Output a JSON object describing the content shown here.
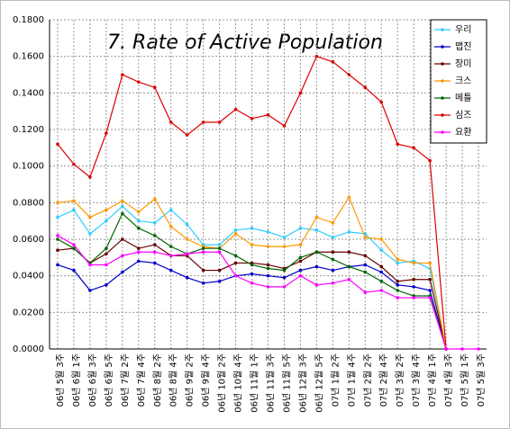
{
  "chart_data": {
    "type": "line",
    "title": "7. Rate of Active Population",
    "categories": [
      "06년 5월 3주",
      "06년 6월 1주",
      "06년 6월 3주",
      "06년 6월 5주",
      "06년 7월 2주",
      "06년 7월 4주",
      "06년 8월 2주",
      "06년 8월 4주",
      "06년 9월 2주",
      "06년 9월 4주",
      "06년 10월 2주",
      "06년 10월 4주",
      "06년 11월 1주",
      "06년 11월 3주",
      "06년 11월 5주",
      "06년 12월 3주",
      "06년 12월 5주",
      "07년 1월 2주",
      "07년 1월 4주",
      "07년 2월 2주",
      "07년 2월 4주",
      "07년 3월 2주",
      "07년 3월 4주",
      "07년 4월 1주",
      "07년 4월 3주",
      "07년 5월 1주",
      "07년 5월 3주"
    ],
    "series": [
      {
        "name": "우리",
        "color": "#33ccff",
        "values": [
          0.072,
          0.076,
          0.063,
          0.07,
          0.078,
          0.07,
          0.069,
          0.076,
          0.068,
          0.057,
          0.057,
          0.065,
          0.066,
          0.064,
          0.061,
          0.066,
          0.065,
          0.061,
          0.064,
          0.063,
          0.054,
          0.047,
          0.048,
          0.044,
          0,
          null,
          null
        ]
      },
      {
        "name": "맵진",
        "color": "#0000cc",
        "values": [
          0.046,
          0.043,
          0.032,
          0.035,
          0.042,
          0.048,
          0.047,
          0.043,
          0.039,
          0.036,
          0.037,
          0.04,
          0.041,
          0.04,
          0.039,
          0.043,
          0.045,
          0.043,
          0.045,
          0.046,
          0.042,
          0.035,
          0.034,
          0.032,
          0,
          null,
          null
        ]
      },
      {
        "name": "장미",
        "color": "#660000",
        "values": [
          0.054,
          0.055,
          0.047,
          0.052,
          0.06,
          0.055,
          0.057,
          0.051,
          0.051,
          0.043,
          0.043,
          0.047,
          0.047,
          0.046,
          0.044,
          0.048,
          0.053,
          0.053,
          0.053,
          0.051,
          0.045,
          0.037,
          0.038,
          0.038,
          0,
          null,
          null
        ]
      },
      {
        "name": "크스",
        "color": "#ff9900",
        "values": [
          0.08,
          0.081,
          0.072,
          0.076,
          0.081,
          0.075,
          0.082,
          0.067,
          0.06,
          0.056,
          0.055,
          0.063,
          0.057,
          0.056,
          0.056,
          0.057,
          0.072,
          0.069,
          0.083,
          0.061,
          0.06,
          0.049,
          0.047,
          0.047,
          0,
          null,
          null
        ]
      },
      {
        "name": "메틀",
        "color": "#006600",
        "values": [
          0.06,
          0.055,
          0.047,
          0.055,
          0.074,
          0.066,
          0.062,
          0.056,
          0.052,
          0.055,
          0.055,
          0.051,
          0.046,
          0.044,
          0.043,
          0.05,
          0.053,
          0.049,
          0.045,
          0.042,
          0.037,
          0.032,
          0.029,
          0.029,
          0,
          null,
          null
        ]
      },
      {
        "name": "심즈",
        "color": "#dd0000",
        "values": [
          0.112,
          0.101,
          0.094,
          0.118,
          0.15,
          0.146,
          0.143,
          0.124,
          0.117,
          0.124,
          0.124,
          0.131,
          0.126,
          0.128,
          0.122,
          0.14,
          0.16,
          0.157,
          0.15,
          0.143,
          0.135,
          0.112,
          0.11,
          0.103,
          0,
          null,
          null
        ]
      },
      {
        "name": "요환",
        "color": "#ff00ff",
        "values": [
          0.062,
          0.057,
          0.046,
          0.046,
          0.051,
          0.053,
          0.053,
          0.051,
          0.052,
          0.053,
          0.053,
          0.04,
          0.036,
          0.034,
          0.034,
          0.04,
          0.035,
          0.036,
          0.038,
          0.031,
          0.032,
          0.028,
          0.028,
          0.028,
          0,
          0,
          0
        ]
      }
    ],
    "ylim": [
      0,
      0.18
    ],
    "yticks": [
      {
        "value": 0,
        "label": "0.0000"
      },
      {
        "value": 0.02,
        "label": "0.0200"
      },
      {
        "value": 0.04,
        "label": "0.0400"
      },
      {
        "value": 0.06,
        "label": "0.0600"
      },
      {
        "value": 0.08,
        "label": "0.0800"
      },
      {
        "value": 0.1,
        "label": "0.1000"
      },
      {
        "value": 0.12,
        "label": "0.1200"
      },
      {
        "value": 0.14,
        "label": "0.1400"
      },
      {
        "value": 0.16,
        "label": "0.1600"
      },
      {
        "value": 0.18,
        "label": "0.1800"
      }
    ],
    "grid": true,
    "legend": "upper right"
  }
}
